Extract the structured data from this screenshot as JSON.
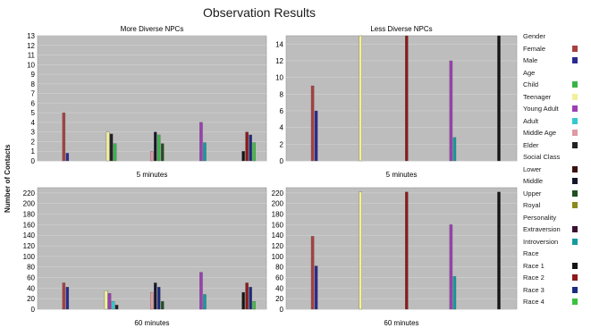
{
  "title": "Observation Results",
  "ylabel": "Number of Contacts",
  "legend": [
    {
      "group": "Gender",
      "items": [
        {
          "label": "Female",
          "color": "#a8403f"
        },
        {
          "label": "Male",
          "color": "#2a2a90"
        }
      ]
    },
    {
      "group": "Age",
      "items": [
        {
          "label": "Child",
          "color": "#3cb34a"
        },
        {
          "label": "Teenager",
          "color": "#f2f09a"
        },
        {
          "label": "Young Adult",
          "color": "#9b3fb3"
        },
        {
          "label": "Adult",
          "color": "#35c9cf"
        },
        {
          "label": "Middle Age",
          "color": "#e09aa3"
        },
        {
          "label": "Elder",
          "color": "#222222"
        }
      ]
    },
    {
      "group": "Social Class",
      "items": [
        {
          "label": "Lower",
          "color": "#3a1010"
        },
        {
          "label": "Middle",
          "color": "#15152a"
        },
        {
          "label": "Upper",
          "color": "#1f5020"
        },
        {
          "label": "Royal",
          "color": "#8a8a20"
        }
      ]
    },
    {
      "group": "Personality",
      "items": [
        {
          "label": "Extraversion",
          "color": "#3a1030"
        },
        {
          "label": "Introversion",
          "color": "#159aa0"
        }
      ]
    },
    {
      "group": "Race",
      "items": [
        {
          "label": "Race 1",
          "color": "#151515"
        },
        {
          "label": "Race 2",
          "color": "#8c1a1a"
        },
        {
          "label": "Race 3",
          "color": "#1c2a80"
        },
        {
          "label": "Race 4",
          "color": "#3cc040"
        }
      ]
    }
  ],
  "chart_data": [
    {
      "type": "bar",
      "title": "More Diverse NPCs",
      "xlabel": "5 minutes",
      "ylim": [
        0,
        13
      ],
      "yticks": [
        0,
        1,
        2,
        3,
        4,
        5,
        6,
        7,
        8,
        9,
        10,
        11,
        12,
        13
      ],
      "categories": [
        "Gender",
        "Age",
        "Social Class",
        "Personality",
        "Race"
      ],
      "groups": [
        {
          "category": "Gender",
          "bars": [
            {
              "series": "Female",
              "value": 5
            },
            {
              "series": "Male",
              "value": 0.8
            }
          ]
        },
        {
          "category": "Age",
          "bars": [
            {
              "series": "Teenager",
              "value": 3
            },
            {
              "series": "Elder",
              "value": 2.8
            },
            {
              "series": "Child",
              "value": 1.8
            }
          ]
        },
        {
          "category": "Social Class",
          "bars": [
            {
              "series": "Middle Age",
              "value": 1
            },
            {
              "series": "Middle",
              "value": 3
            },
            {
              "series": "Child",
              "value": 2.7
            },
            {
              "series": "Upper",
              "value": 1.8
            }
          ]
        },
        {
          "category": "Personality",
          "bars": [
            {
              "series": "Young Adult",
              "value": 4
            },
            {
              "series": "Introversion",
              "value": 1.9
            }
          ]
        },
        {
          "category": "Race",
          "bars": [
            {
              "series": "Race 1",
              "value": 1
            },
            {
              "series": "Race 2",
              "value": 3
            },
            {
              "series": "Race 3",
              "value": 2.7
            },
            {
              "series": "Race 4",
              "value": 1.9
            }
          ]
        }
      ]
    },
    {
      "type": "bar",
      "title": "Less Diverse NPCs",
      "xlabel": "5 minutes",
      "ylim": [
        0,
        15
      ],
      "yticks": [
        0,
        2,
        4,
        6,
        8,
        10,
        12,
        14
      ],
      "categories": [
        "Gender",
        "Age",
        "Social Class",
        "Personality",
        "Race"
      ],
      "groups": [
        {
          "category": "Gender",
          "bars": [
            {
              "series": "Female",
              "value": 9
            },
            {
              "series": "Male",
              "value": 6
            }
          ]
        },
        {
          "category": "Age",
          "bars": [
            {
              "series": "Teenager",
              "value": 15
            }
          ]
        },
        {
          "category": "Social Class",
          "bars": [
            {
              "series": "Race 2",
              "value": 15
            }
          ]
        },
        {
          "category": "Personality",
          "bars": [
            {
              "series": "Young Adult",
              "value": 12
            },
            {
              "series": "Introversion",
              "value": 2.8
            }
          ]
        },
        {
          "category": "Race",
          "bars": [
            {
              "series": "Race 1",
              "value": 15
            }
          ]
        }
      ]
    },
    {
      "type": "bar",
      "title": "",
      "xlabel": "60 minutes",
      "ylim": [
        0,
        230
      ],
      "yticks": [
        0,
        20,
        40,
        60,
        80,
        100,
        120,
        140,
        160,
        180,
        200,
        220
      ],
      "categories": [
        "Gender",
        "Age",
        "Social Class",
        "Personality",
        "Race"
      ],
      "groups": [
        {
          "category": "Gender",
          "bars": [
            {
              "series": "Female",
              "value": 50
            },
            {
              "series": "Male",
              "value": 42
            }
          ]
        },
        {
          "category": "Age",
          "bars": [
            {
              "series": "Teenager",
              "value": 35
            },
            {
              "series": "Young Adult",
              "value": 30
            },
            {
              "series": "Adult",
              "value": 15
            },
            {
              "series": "Elder",
              "value": 8
            }
          ]
        },
        {
          "category": "Social Class",
          "bars": [
            {
              "series": "Middle Age",
              "value": 32
            },
            {
              "series": "Middle",
              "value": 50
            },
            {
              "series": "Race 3",
              "value": 42
            },
            {
              "series": "Upper",
              "value": 15
            }
          ]
        },
        {
          "category": "Personality",
          "bars": [
            {
              "series": "Young Adult",
              "value": 70
            },
            {
              "series": "Introversion",
              "value": 28
            }
          ]
        },
        {
          "category": "Race",
          "bars": [
            {
              "series": "Race 1",
              "value": 32
            },
            {
              "series": "Race 2",
              "value": 50
            },
            {
              "series": "Race 3",
              "value": 42
            },
            {
              "series": "Race 4",
              "value": 15
            }
          ]
        }
      ]
    },
    {
      "type": "bar",
      "title": "",
      "xlabel": "60 minutes",
      "ylim": [
        0,
        230
      ],
      "yticks": [
        0,
        20,
        40,
        60,
        80,
        100,
        120,
        140,
        160,
        180,
        200,
        220
      ],
      "categories": [
        "Gender",
        "Age",
        "Social Class",
        "Personality",
        "Race"
      ],
      "groups": [
        {
          "category": "Gender",
          "bars": [
            {
              "series": "Female",
              "value": 138
            },
            {
              "series": "Male",
              "value": 82
            }
          ]
        },
        {
          "category": "Age",
          "bars": [
            {
              "series": "Teenager",
              "value": 222
            }
          ]
        },
        {
          "category": "Social Class",
          "bars": [
            {
              "series": "Race 2",
              "value": 222
            }
          ]
        },
        {
          "category": "Personality",
          "bars": [
            {
              "series": "Young Adult",
              "value": 160
            },
            {
              "series": "Introversion",
              "value": 62
            }
          ]
        },
        {
          "category": "Race",
          "bars": [
            {
              "series": "Race 1",
              "value": 222
            }
          ]
        }
      ]
    }
  ]
}
